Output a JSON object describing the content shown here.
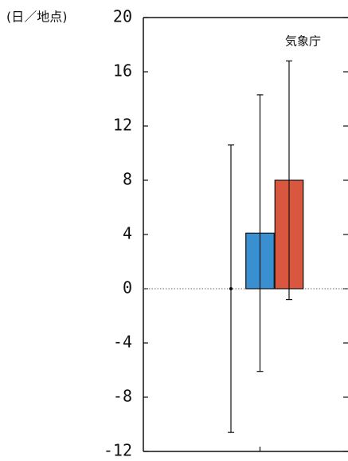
{
  "chart_data": {
    "type": "bar",
    "y_label": "(日／地点)",
    "annotation": "気象庁",
    "categories": [
      null,
      null,
      null
    ],
    "values": [
      0,
      4.1,
      8.0
    ],
    "errors": [
      10.6,
      10.2,
      8.8
    ],
    "styles": [
      "point",
      "bar",
      "bar"
    ],
    "colors": [
      "#000000",
      "#3a8fd0",
      "#d9573f"
    ],
    "ylim": [
      -12,
      20
    ],
    "yticks": [
      -12,
      -8,
      -4,
      0,
      4,
      8,
      12,
      16,
      20
    ],
    "zero_line": true
  }
}
